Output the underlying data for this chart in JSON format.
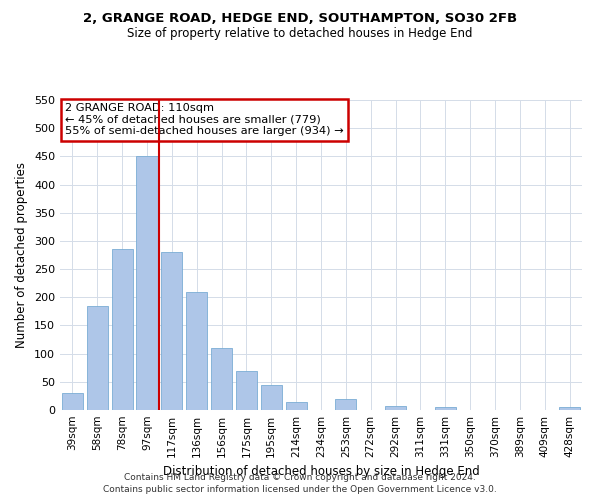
{
  "title": "2, GRANGE ROAD, HEDGE END, SOUTHAMPTON, SO30 2FB",
  "subtitle": "Size of property relative to detached houses in Hedge End",
  "xlabel": "Distribution of detached houses by size in Hedge End",
  "ylabel": "Number of detached properties",
  "bar_color": "#aec6e8",
  "bar_edgecolor": "#7aadd4",
  "categories": [
    "39sqm",
    "58sqm",
    "78sqm",
    "97sqm",
    "117sqm",
    "136sqm",
    "156sqm",
    "175sqm",
    "195sqm",
    "214sqm",
    "234sqm",
    "253sqm",
    "272sqm",
    "292sqm",
    "311sqm",
    "331sqm",
    "350sqm",
    "370sqm",
    "389sqm",
    "409sqm",
    "428sqm"
  ],
  "values": [
    30,
    185,
    285,
    450,
    280,
    210,
    110,
    70,
    45,
    15,
    0,
    20,
    0,
    7,
    0,
    5,
    0,
    0,
    0,
    0,
    5
  ],
  "ylim": [
    0,
    550
  ],
  "yticks": [
    0,
    50,
    100,
    150,
    200,
    250,
    300,
    350,
    400,
    450,
    500,
    550
  ],
  "annotation_title": "2 GRANGE ROAD: 110sqm",
  "annotation_line1": "← 45% of detached houses are smaller (779)",
  "annotation_line2": "55% of semi-detached houses are larger (934) →",
  "annotation_box_color": "#ffffff",
  "annotation_box_edgecolor": "#cc0000",
  "vline_color": "#cc0000",
  "vline_index": 3.5,
  "footer1": "Contains HM Land Registry data © Crown copyright and database right 2024.",
  "footer2": "Contains public sector information licensed under the Open Government Licence v3.0.",
  "background_color": "#ffffff",
  "grid_color": "#d4dce8"
}
